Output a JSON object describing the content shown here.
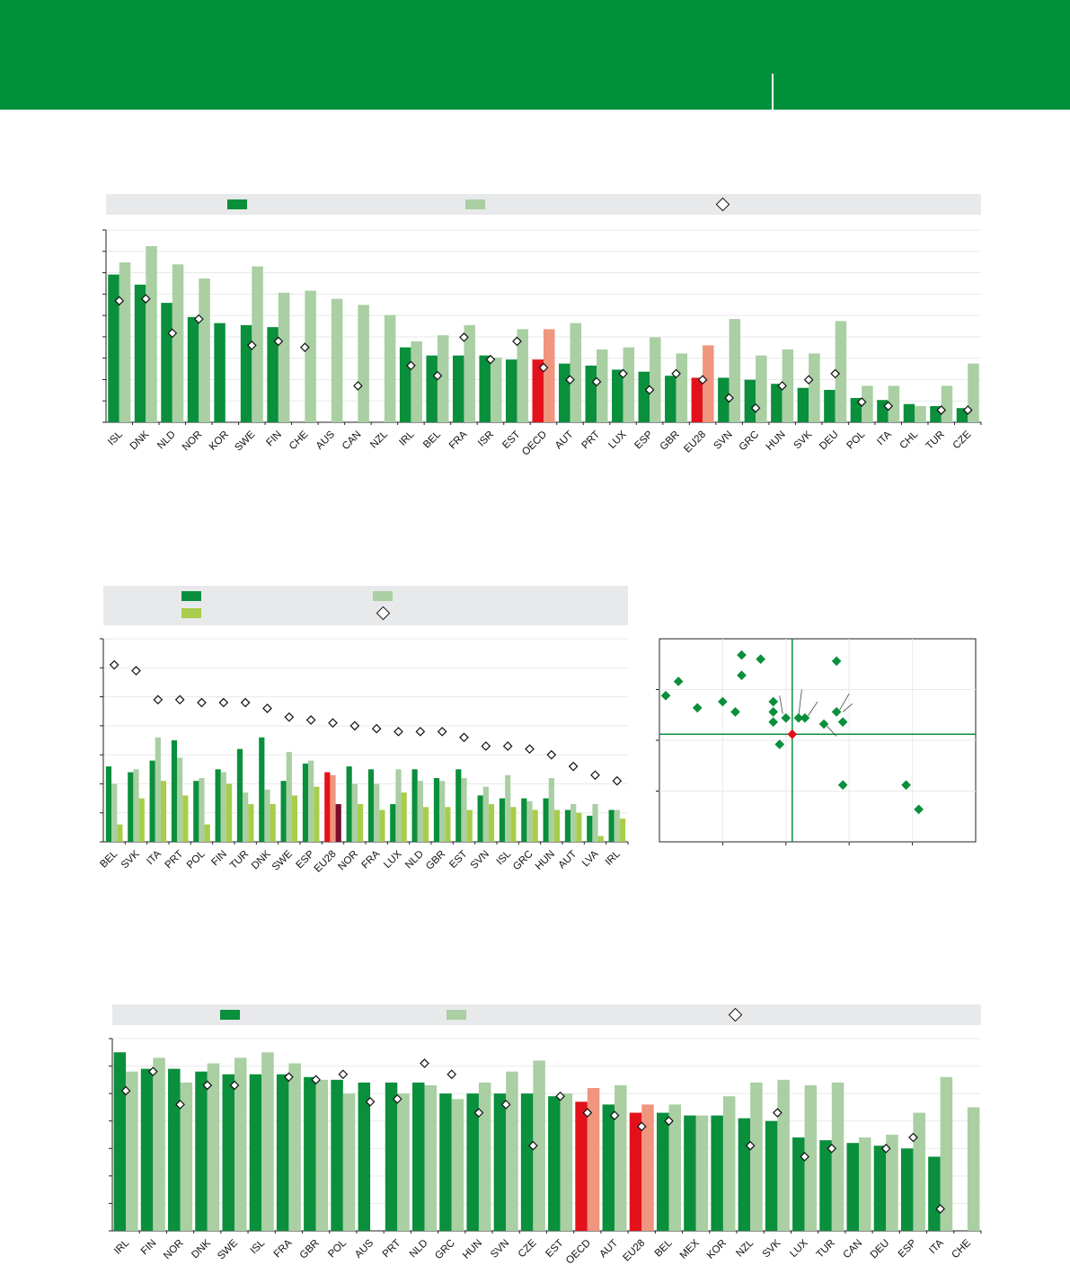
{
  "header": {
    "title": "",
    "section": ""
  },
  "chart_data": [
    {
      "id": "chart1",
      "type": "bar",
      "legend": [
        {
          "key": "series_a",
          "label": "",
          "color": "#0a8f3c"
        },
        {
          "key": "series_b",
          "label": "",
          "color": "#a9cfa3"
        },
        {
          "key": "marker",
          "label": "",
          "color": "#ffffff"
        }
      ],
      "categories": [
        "ISL",
        "DNK",
        "NLD",
        "NOR",
        "KOR",
        "SWE",
        "FIN",
        "CHE",
        "AUS",
        "CAN",
        "NZL",
        "IRL",
        "BEL",
        "FRA",
        "ISR",
        "EST",
        "OECD",
        "AUT",
        "PRT",
        "LUX",
        "ESP",
        "GBR",
        "EU28",
        "SVN",
        "GRC",
        "HUN",
        "SVK",
        "DEU",
        "POL",
        "ITA",
        "CHL",
        "TUR",
        "CZE"
      ],
      "series": [
        {
          "name": "series_a",
          "values": [
            7.3,
            6.8,
            5.9,
            5.2,
            4.9,
            4.8,
            4.7,
            null,
            null,
            null,
            null,
            3.7,
            3.3,
            3.3,
            3.3,
            3.1,
            3.1,
            2.9,
            2.8,
            2.6,
            2.5,
            2.3,
            2.2,
            2.2,
            2.1,
            1.9,
            1.7,
            1.6,
            1.2,
            1.1,
            0.9,
            0.8,
            0.7
          ]
        },
        {
          "name": "series_b",
          "values": [
            7.9,
            8.7,
            7.8,
            7.1,
            null,
            7.7,
            6.4,
            6.5,
            6.1,
            5.8,
            5.3,
            4.0,
            4.3,
            4.8,
            3.2,
            4.6,
            4.6,
            4.9,
            3.6,
            3.7,
            4.2,
            3.4,
            3.8,
            5.1,
            3.3,
            3.6,
            3.4,
            5.0,
            1.8,
            1.8,
            0.8,
            1.8,
            2.9
          ]
        },
        {
          "name": "marker",
          "values": [
            6.0,
            6.1,
            4.4,
            5.1,
            null,
            3.8,
            4.0,
            3.7,
            null,
            1.8,
            null,
            2.8,
            2.3,
            4.2,
            3.1,
            4.0,
            2.7,
            2.1,
            2.0,
            2.4,
            1.6,
            2.4,
            2.1,
            1.2,
            0.7,
            1.8,
            2.1,
            2.4,
            1.0,
            0.8,
            null,
            0.6,
            0.6
          ]
        }
      ],
      "ylim": [
        0,
        9.5
      ],
      "yticks": [
        "",
        "",
        "",
        "",
        "",
        "",
        "",
        "",
        "",
        ""
      ]
    },
    {
      "id": "chart2",
      "type": "bar",
      "legend": [
        {
          "key": "series_a",
          "label": "",
          "color": "#0a8f3c"
        },
        {
          "key": "series_b",
          "label": "",
          "color": "#a9cfa3"
        },
        {
          "key": "series_c",
          "label": "",
          "color": "#a8cd4a"
        },
        {
          "key": "marker",
          "label": "",
          "color": "#ffffff"
        }
      ],
      "categories": [
        "BEL",
        "SVK",
        "ITA",
        "PRT",
        "POL",
        "FIN",
        "TUR",
        "DNK",
        "SWE",
        "ESP",
        "EU28",
        "NOR",
        "FRA",
        "LUX",
        "NLD",
        "GBR",
        "EST",
        "SVN",
        "ISL",
        "GRC",
        "HUN",
        "AUT",
        "LVA",
        "IRL"
      ],
      "series": [
        {
          "name": "series_a",
          "values": [
            26,
            24,
            28,
            35,
            21,
            25,
            32,
            36,
            21,
            27,
            24,
            26,
            25,
            13,
            25,
            22,
            25,
            16,
            15,
            15,
            15,
            11,
            9,
            11
          ]
        },
        {
          "name": "series_b",
          "values": [
            20,
            25,
            36,
            29,
            22,
            24,
            17,
            18,
            31,
            28,
            23,
            20,
            20,
            25,
            21,
            21,
            22,
            19,
            23,
            14,
            22,
            13,
            13,
            11
          ]
        },
        {
          "name": "series_c",
          "values": [
            6,
            15,
            21,
            16,
            6,
            20,
            13,
            13,
            16,
            19,
            13,
            13,
            11,
            17,
            12,
            12,
            11,
            13,
            12,
            11,
            11,
            10,
            2,
            8
          ]
        },
        {
          "name": "marker",
          "values": [
            61,
            59,
            49,
            49,
            48,
            48,
            48,
            46,
            43,
            42,
            41,
            40,
            39,
            38,
            38,
            38,
            36,
            33,
            33,
            32,
            30,
            26,
            23,
            21
          ]
        }
      ],
      "ylim": [
        0,
        70
      ],
      "yticks": [
        "",
        "",
        "",
        "",
        "",
        "",
        "",
        ""
      ]
    },
    {
      "id": "chart3",
      "type": "scatter",
      "xlim": [
        0,
        100
      ],
      "ylim": [
        0,
        100
      ],
      "reference": {
        "x": 42,
        "y": 53
      },
      "points": [
        {
          "x": 2,
          "y": 72
        },
        {
          "x": 6,
          "y": 79
        },
        {
          "x": 12,
          "y": 66
        },
        {
          "x": 20,
          "y": 69
        },
        {
          "x": 24,
          "y": 64
        },
        {
          "x": 26,
          "y": 82
        },
        {
          "x": 26,
          "y": 92
        },
        {
          "x": 32,
          "y": 90
        },
        {
          "x": 36,
          "y": 69
        },
        {
          "x": 36,
          "y": 64
        },
        {
          "x": 36,
          "y": 59
        },
        {
          "x": 38,
          "y": 48
        },
        {
          "x": 40,
          "y": 61
        },
        {
          "x": 44,
          "y": 61
        },
        {
          "x": 46,
          "y": 61
        },
        {
          "x": 52,
          "y": 58
        },
        {
          "x": 56,
          "y": 89
        },
        {
          "x": 56,
          "y": 64
        },
        {
          "x": 58,
          "y": 59
        },
        {
          "x": 58,
          "y": 28
        },
        {
          "x": 78,
          "y": 28
        },
        {
          "x": 82,
          "y": 16
        }
      ],
      "highlight": {
        "x": 42,
        "y": 53
      },
      "annotations": []
    },
    {
      "id": "chart4",
      "type": "bar",
      "legend": [
        {
          "key": "series_a",
          "label": "",
          "color": "#0a8f3c"
        },
        {
          "key": "series_b",
          "label": "",
          "color": "#a9cfa3"
        },
        {
          "key": "marker",
          "label": "",
          "color": "#ffffff"
        }
      ],
      "categories": [
        "IRL",
        "FIN",
        "NOR",
        "DNK",
        "SWE",
        "ISL",
        "FRA",
        "GBR",
        "POL",
        "AUS",
        "PRT",
        "NLD",
        "GRC",
        "HUN",
        "SVN",
        "CZE",
        "EST",
        "OECD",
        "AUT",
        "EU28",
        "BEL",
        "MEX",
        "KOR",
        "NZL",
        "SVK",
        "LUX",
        "TUR",
        "CAN",
        "DEU",
        "ESP",
        "ITA",
        "CHE"
      ],
      "series": [
        {
          "name": "series_a",
          "values": [
            65,
            59,
            59,
            58,
            57,
            57,
            57,
            56,
            55,
            54,
            54,
            54,
            50,
            50,
            50,
            50,
            49,
            47,
            46,
            43,
            43,
            42,
            42,
            41,
            40,
            34,
            33,
            32,
            31,
            30,
            27,
            null
          ]
        },
        {
          "name": "series_b",
          "values": [
            58,
            63,
            54,
            61,
            63,
            65,
            61,
            55,
            50,
            null,
            50,
            53,
            48,
            54,
            58,
            62,
            50,
            52,
            53,
            46,
            46,
            42,
            49,
            54,
            55,
            53,
            54,
            34,
            35,
            43,
            56,
            45
          ]
        },
        {
          "name": "marker",
          "values": [
            51,
            58,
            46,
            53,
            53,
            null,
            56,
            55,
            57,
            47,
            48,
            61,
            57,
            43,
            46,
            31,
            49,
            43,
            42,
            38,
            40,
            null,
            null,
            31,
            43,
            27,
            30,
            null,
            30,
            34,
            8,
            null
          ]
        }
      ],
      "ylim": [
        0,
        70
      ],
      "yticks": [
        "",
        "",
        "",
        "",
        "",
        "",
        "",
        ""
      ]
    }
  ]
}
